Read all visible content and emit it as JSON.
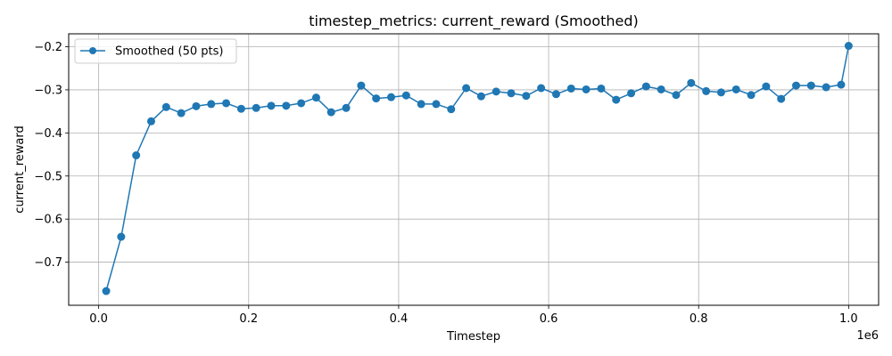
{
  "chart_data": {
    "type": "line",
    "title": "timestep_metrics: current_reward (Smoothed)",
    "xlabel": "Timestep",
    "ylabel": "current_reward",
    "x_offset_label": "1e6",
    "xlim": [
      -40000,
      1040000
    ],
    "ylim": [
      -0.8,
      -0.17
    ],
    "x_ticks": [
      0,
      200000,
      400000,
      600000,
      800000,
      1000000
    ],
    "x_tick_labels": [
      "0.0",
      "0.2",
      "0.4",
      "0.6",
      "0.8",
      "1.0"
    ],
    "y_ticks": [
      -0.7,
      -0.6,
      -0.5,
      -0.4,
      -0.3,
      -0.2
    ],
    "y_tick_labels": [
      "−0.7",
      "−0.6",
      "−0.5",
      "−0.4",
      "−0.3",
      "−0.2"
    ],
    "grid": true,
    "legend_position": "top-left",
    "color": "#1f77b4",
    "series": [
      {
        "name": "Smoothed (50 pts)",
        "x": [
          10000,
          30000,
          50000,
          70000,
          90000,
          110000,
          130000,
          150000,
          170000,
          190000,
          210000,
          230000,
          250000,
          270000,
          290000,
          310000,
          330000,
          350000,
          370000,
          390000,
          410000,
          430000,
          450000,
          470000,
          490000,
          510000,
          530000,
          550000,
          570000,
          590000,
          610000,
          630000,
          650000,
          670000,
          690000,
          710000,
          730000,
          750000,
          770000,
          790000,
          810000,
          830000,
          850000,
          870000,
          890000,
          910000,
          930000,
          950000,
          970000,
          990000,
          1000000
        ],
        "y": [
          -0.767,
          -0.641,
          -0.452,
          -0.373,
          -0.34,
          -0.354,
          -0.338,
          -0.333,
          -0.331,
          -0.344,
          -0.342,
          -0.337,
          -0.337,
          -0.331,
          -0.318,
          -0.352,
          -0.342,
          -0.29,
          -0.32,
          -0.317,
          -0.313,
          -0.333,
          -0.333,
          -0.345,
          -0.296,
          -0.315,
          -0.304,
          -0.308,
          -0.314,
          -0.296,
          -0.31,
          -0.297,
          -0.299,
          -0.297,
          -0.323,
          -0.308,
          -0.292,
          -0.299,
          -0.312,
          -0.284,
          -0.303,
          -0.306,
          -0.299,
          -0.312,
          -0.292,
          -0.321,
          -0.29,
          -0.29,
          -0.294,
          -0.288,
          -0.198
        ]
      }
    ]
  }
}
